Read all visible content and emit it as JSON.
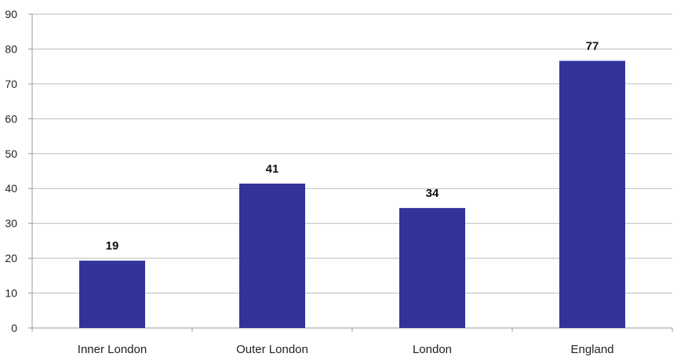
{
  "chart_data": {
    "type": "bar",
    "categories": [
      "Inner London",
      "Outer London",
      "London",
      "England"
    ],
    "values": [
      19.3,
      41.4,
      34.4,
      76.6
    ],
    "data_labels": [
      "19",
      "41",
      "34",
      "77"
    ],
    "ylim": [
      0,
      90
    ],
    "yticks": [
      "0",
      "10",
      "20",
      "30",
      "40",
      "50",
      "60",
      "70",
      "80",
      "90"
    ],
    "grid": true,
    "bar_color": "#33339a",
    "title": "",
    "xlabel": "",
    "ylabel": ""
  }
}
